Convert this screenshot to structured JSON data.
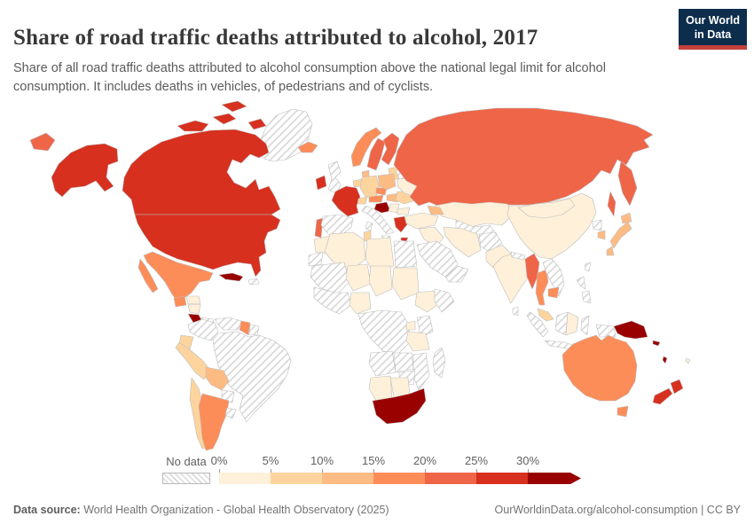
{
  "header": {
    "title": "Share of road traffic deaths attributed to alcohol, 2017",
    "subtitle": "Share of all road traffic deaths attributed to alcohol consumption above the national legal limit for alcohol consumption. It includes deaths in vehicles, of pedestrians and of cyclists."
  },
  "logo": {
    "line1": "Our World",
    "line2": "in Data",
    "bg": "#0d2d4d",
    "accent": "#c4403d"
  },
  "legend": {
    "no_data_label": "No data",
    "tick_labels": [
      "0%",
      "5%",
      "10%",
      "15%",
      "20%",
      "25%",
      "30%"
    ]
  },
  "footer": {
    "source_label": "Data source:",
    "source_value": "World Health Organization - Global Health Observatory (2025)",
    "link": "OurWorldinData.org/alcohol-consumption | CC BY"
  },
  "chart_data": {
    "type": "heatmap",
    "subtype": "world-choropleth",
    "title": "Share of road traffic deaths attributed to alcohol, 2017",
    "unit": "%",
    "legend_position": "bottom",
    "bins": [
      "0-5%",
      "5-10%",
      "10-15%",
      "15-20%",
      "20-25%",
      "25-30%",
      "30%+"
    ],
    "palette": [
      "#fef0d9",
      "#fdd49e",
      "#fdbb84",
      "#fc8d59",
      "#ef6548",
      "#d7301f",
      "#990000"
    ],
    "no_data": {
      "label": "No data",
      "fill": "hatched"
    },
    "regions": [
      {
        "id": "canada",
        "name": "Canada",
        "bin": "25-30%"
      },
      {
        "id": "usa",
        "name": "United States",
        "bin": "25-30%"
      },
      {
        "id": "greenland",
        "name": "Greenland",
        "bin": "no-data"
      },
      {
        "id": "mexico",
        "name": "Mexico",
        "bin": "15-20%"
      },
      {
        "id": "guatemala",
        "name": "Guatemala",
        "bin": "15-20%"
      },
      {
        "id": "honduras",
        "name": "Honduras",
        "bin": "0-5%"
      },
      {
        "id": "nicaragua",
        "name": "Nicaragua",
        "bin": "0-5%"
      },
      {
        "id": "costa-rica",
        "name": "Costa Rica",
        "bin": "30%+"
      },
      {
        "id": "panama",
        "name": "Panama",
        "bin": "no-data"
      },
      {
        "id": "cuba",
        "name": "Cuba",
        "bin": "30%+"
      },
      {
        "id": "hispaniola",
        "name": "Hispaniola",
        "bin": "no-data"
      },
      {
        "id": "colombia",
        "name": "Colombia",
        "bin": "no-data"
      },
      {
        "id": "venezuela",
        "name": "Venezuela",
        "bin": "no-data"
      },
      {
        "id": "guyana",
        "name": "Guyana",
        "bin": "15-20%"
      },
      {
        "id": "suriname",
        "name": "Suriname",
        "bin": "no-data"
      },
      {
        "id": "brazil",
        "name": "Brazil",
        "bin": "no-data"
      },
      {
        "id": "ecuador",
        "name": "Ecuador",
        "bin": "5-10%"
      },
      {
        "id": "peru",
        "name": "Peru",
        "bin": "5-10%"
      },
      {
        "id": "bolivia",
        "name": "Bolivia",
        "bin": "10-15%"
      },
      {
        "id": "paraguay",
        "name": "Paraguay",
        "bin": "no-data"
      },
      {
        "id": "chile",
        "name": "Chile",
        "bin": "5-10%"
      },
      {
        "id": "argentina",
        "name": "Argentina",
        "bin": "15-20%"
      },
      {
        "id": "uruguay",
        "name": "Uruguay",
        "bin": "no-data"
      },
      {
        "id": "iceland",
        "name": "Iceland",
        "bin": "15-20%"
      },
      {
        "id": "ireland",
        "name": "Ireland",
        "bin": "25-30%"
      },
      {
        "id": "united-kingdom",
        "name": "United Kingdom",
        "bin": "no-data"
      },
      {
        "id": "portugal",
        "name": "Portugal",
        "bin": "20-25%"
      },
      {
        "id": "spain",
        "name": "Spain",
        "bin": "no-data"
      },
      {
        "id": "france",
        "name": "France",
        "bin": "25-30%"
      },
      {
        "id": "benelux",
        "name": "Belgium & Netherlands",
        "bin": "5-10%"
      },
      {
        "id": "germany",
        "name": "Germany",
        "bin": "5-10%"
      },
      {
        "id": "switzerland",
        "name": "Switzerland",
        "bin": "5-10%"
      },
      {
        "id": "norway",
        "name": "Norway",
        "bin": "15-20%"
      },
      {
        "id": "sweden",
        "name": "Sweden",
        "bin": "20-25%"
      },
      {
        "id": "finland",
        "name": "Finland",
        "bin": "20-25%"
      },
      {
        "id": "denmark",
        "name": "Denmark",
        "bin": "10-15%"
      },
      {
        "id": "baltics",
        "name": "Baltic states",
        "bin": "5-10%"
      },
      {
        "id": "poland",
        "name": "Poland",
        "bin": "10-15%"
      },
      {
        "id": "czechia",
        "name": "Czechia",
        "bin": "15-20%"
      },
      {
        "id": "austria",
        "name": "Austria",
        "bin": "15-20%"
      },
      {
        "id": "italy",
        "name": "Italy",
        "bin": "no-data"
      },
      {
        "id": "croatia",
        "name": "Croatia & Slovenia",
        "bin": "30%+"
      },
      {
        "id": "hungary",
        "name": "Hungary",
        "bin": "10-15%"
      },
      {
        "id": "romania",
        "name": "Romania",
        "bin": "5-10%"
      },
      {
        "id": "serbia",
        "name": "Serbia",
        "bin": "0-5%"
      },
      {
        "id": "bulgaria",
        "name": "Bulgaria",
        "bin": "0-5%"
      },
      {
        "id": "greece",
        "name": "Greece",
        "bin": "25-30%"
      },
      {
        "id": "ukraine",
        "name": "Ukraine",
        "bin": "0-5%"
      },
      {
        "id": "belarus",
        "name": "Belarus",
        "bin": "no-data"
      },
      {
        "id": "russia",
        "name": "Russia",
        "bin": "20-25%"
      },
      {
        "id": "kazakhstan",
        "name": "Kazakhstan",
        "bin": "0-5%"
      },
      {
        "id": "central-asia",
        "name": "Central Asia",
        "bin": "no-data"
      },
      {
        "id": "caucasus",
        "name": "Caucasus",
        "bin": "10-15%"
      },
      {
        "id": "turkey",
        "name": "Turkey",
        "bin": "0-5%"
      },
      {
        "id": "iraq-syria",
        "name": "Iraq & Syria",
        "bin": "0-5%"
      },
      {
        "id": "saudi-arabia",
        "name": "Saudi Arabia",
        "bin": "no-data"
      },
      {
        "id": "yemen-oman",
        "name": "Yemen & Oman",
        "bin": "no-data"
      },
      {
        "id": "iran",
        "name": "Iran",
        "bin": "0-5%"
      },
      {
        "id": "afghanistan",
        "name": "Afghanistan",
        "bin": "no-data"
      },
      {
        "id": "pakistan",
        "name": "Pakistan",
        "bin": "0-5%"
      },
      {
        "id": "india",
        "name": "India",
        "bin": "0-5%"
      },
      {
        "id": "nepal",
        "name": "Nepal",
        "bin": "no-data"
      },
      {
        "id": "sri-lanka",
        "name": "Sri Lanka",
        "bin": "no-data"
      },
      {
        "id": "china",
        "name": "China",
        "bin": "0-5%"
      },
      {
        "id": "mongolia",
        "name": "Mongolia",
        "bin": "0-5%"
      },
      {
        "id": "myanmar",
        "name": "Myanmar",
        "bin": "20-25%"
      },
      {
        "id": "thailand",
        "name": "Thailand",
        "bin": "15-20%"
      },
      {
        "id": "laos-vietnam",
        "name": "Laos & Vietnam",
        "bin": "no-data"
      },
      {
        "id": "cambodia",
        "name": "Cambodia",
        "bin": "15-20%"
      },
      {
        "id": "malaysia",
        "name": "Malaysia",
        "bin": "5-10%"
      },
      {
        "id": "indonesia",
        "name": "Indonesia (islands)",
        "bin": "no-data"
      },
      {
        "id": "borneo",
        "name": "Borneo (Kalimantan)",
        "bin": "0-5%"
      },
      {
        "id": "philippines",
        "name": "Philippines",
        "bin": "no-data"
      },
      {
        "id": "taiwan",
        "name": "Taiwan",
        "bin": "no-data"
      },
      {
        "id": "japan",
        "name": "Japan",
        "bin": "10-15%"
      },
      {
        "id": "south-korea",
        "name": "South Korea",
        "bin": "10-15%"
      },
      {
        "id": "north-korea",
        "name": "North Korea",
        "bin": "no-data"
      },
      {
        "id": "west-new-guinea",
        "name": "Western New Guinea",
        "bin": "no-data"
      },
      {
        "id": "papua-new-guinea",
        "name": "Papua New Guinea",
        "bin": "30%+"
      },
      {
        "id": "solomon-islands",
        "name": "Solomon Islands",
        "bin": "30%+"
      },
      {
        "id": "vanuatu",
        "name": "Vanuatu",
        "bin": "30%+"
      },
      {
        "id": "fiji",
        "name": "Fiji",
        "bin": "0-5%"
      },
      {
        "id": "australia",
        "name": "Australia",
        "bin": "15-20%"
      },
      {
        "id": "new-zealand",
        "name": "New Zealand",
        "bin": "25-30%"
      },
      {
        "id": "morocco",
        "name": "Morocco",
        "bin": "0-5%"
      },
      {
        "id": "western-sahara",
        "name": "Western Sahara",
        "bin": "no-data"
      },
      {
        "id": "algeria",
        "name": "Algeria",
        "bin": "0-5%"
      },
      {
        "id": "tunisia",
        "name": "Tunisia",
        "bin": "5-10%"
      },
      {
        "id": "libya",
        "name": "Libya",
        "bin": "0-5%"
      },
      {
        "id": "egypt",
        "name": "Egypt",
        "bin": "no-data"
      },
      {
        "id": "mali-mauritania",
        "name": "Mali & Mauritania",
        "bin": "no-data"
      },
      {
        "id": "niger",
        "name": "Niger",
        "bin": "0-5%"
      },
      {
        "id": "chad",
        "name": "Chad",
        "bin": "0-5%"
      },
      {
        "id": "sudan",
        "name": "Sudan",
        "bin": "0-5%"
      },
      {
        "id": "ethiopia",
        "name": "Ethiopia",
        "bin": "0-5%"
      },
      {
        "id": "somalia",
        "name": "Horn of Africa",
        "bin": "no-data"
      },
      {
        "id": "west-africa",
        "name": "West Africa",
        "bin": "no-data"
      },
      {
        "id": "nigeria",
        "name": "Nigeria",
        "bin": "0-5%"
      },
      {
        "id": "central-africa",
        "name": "Central Africa",
        "bin": "no-data"
      },
      {
        "id": "uganda",
        "name": "Uganda",
        "bin": "0-5%"
      },
      {
        "id": "kenya",
        "name": "Kenya",
        "bin": "no-data"
      },
      {
        "id": "tanzania",
        "name": "Tanzania",
        "bin": "0-5%"
      },
      {
        "id": "angola",
        "name": "Angola",
        "bin": "no-data"
      },
      {
        "id": "zambia",
        "name": "Zambia",
        "bin": "no-data"
      },
      {
        "id": "mozambique",
        "name": "Mozambique",
        "bin": "no-data"
      },
      {
        "id": "zimbabwe",
        "name": "Zimbabwe",
        "bin": "no-data"
      },
      {
        "id": "madagascar",
        "name": "Madagascar",
        "bin": "no-data"
      },
      {
        "id": "namibia",
        "name": "Namibia",
        "bin": "0-5%"
      },
      {
        "id": "botswana",
        "name": "Botswana",
        "bin": "0-5%"
      },
      {
        "id": "south-africa",
        "name": "South Africa",
        "bin": "30%+"
      }
    ]
  }
}
